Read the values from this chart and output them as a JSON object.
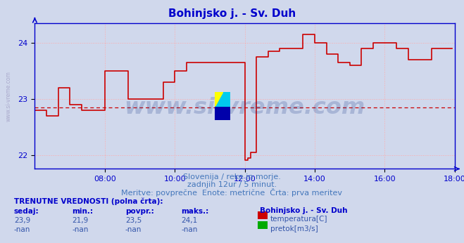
{
  "title": "Bohinjsko j. - Sv. Duh",
  "title_color": "#0000cc",
  "bg_color": "#d0d8ec",
  "plot_bg_color": "#d0d8ec",
  "grid_color": "#ffaaaa",
  "grid_linestyle": ":",
  "avg_line_color": "#cc0000",
  "avg_line_value": 22.84,
  "avg_line_style": "--",
  "xlim": [
    0,
    144
  ],
  "ylim": [
    21.75,
    24.35
  ],
  "yticks": [
    22,
    23,
    24
  ],
  "xtick_labels": [
    "08:00",
    "10:00",
    "12:00",
    "14:00",
    "16:00",
    "18:00"
  ],
  "xtick_positions": [
    24,
    48,
    72,
    96,
    120,
    144
  ],
  "watermark": "www.si-vreme.com",
  "watermark_color": "#1a3a8a",
  "watermark_alpha": 0.22,
  "subtitle1": "Slovenija / reke in morje.",
  "subtitle2": "zadnjih 12ur / 5 minut.",
  "subtitle3": "Meritve: povprečne  Enote: metrične  Črta: prva meritev",
  "subtitle_color": "#4477bb",
  "bottom_header": "TRENUTNE VREDNOSTI (polna črta):",
  "bottom_header_color": "#0000cc",
  "col_headers": [
    "sedaj:",
    "min.:",
    "povpr.:",
    "maks.:"
  ],
  "col_values_temp": [
    "23,9",
    "21,9",
    "23,5",
    "24,1"
  ],
  "col_values_pretok": [
    "-nan",
    "-nan",
    "-nan",
    "-nan"
  ],
  "col_header_color": "#0000cc",
  "col_value_color": "#3355aa",
  "station_label": "Bohinjsko j. - Sv. Duh",
  "legend_temp_color": "#cc0000",
  "legend_pretok_color": "#00aa00",
  "legend_temp_label": "temperatura[C]",
  "legend_pretok_label": "pretok[m3/s]",
  "line_color": "#cc0000",
  "line_width": 1.2,
  "axis_color": "#0000cc",
  "tick_color": "#0000cc",
  "left_label": "www.si-vreme.com",
  "left_label_color": "#aaaacc",
  "temperature_data": [
    22.8,
    22.8,
    22.8,
    22.8,
    22.7,
    22.7,
    22.7,
    22.7,
    23.2,
    23.2,
    23.2,
    23.2,
    22.9,
    22.9,
    22.9,
    22.9,
    22.8,
    22.8,
    22.8,
    22.8,
    22.8,
    22.8,
    22.8,
    22.8,
    23.5,
    23.5,
    23.5,
    23.5,
    23.5,
    23.5,
    23.5,
    23.5,
    23.0,
    23.0,
    23.0,
    23.0,
    23.0,
    23.0,
    23.0,
    23.0,
    23.0,
    23.0,
    23.0,
    23.0,
    23.3,
    23.3,
    23.3,
    23.3,
    23.5,
    23.5,
    23.5,
    23.5,
    23.65,
    23.65,
    23.65,
    23.65,
    23.65,
    23.65,
    23.65,
    23.65,
    23.65,
    23.65,
    23.65,
    23.65,
    23.65,
    23.65,
    23.65,
    23.65,
    23.65,
    23.65,
    23.65,
    23.65,
    21.9,
    21.95,
    22.05,
    22.05,
    23.75,
    23.75,
    23.75,
    23.75,
    23.85,
    23.85,
    23.85,
    23.85,
    23.9,
    23.9,
    23.9,
    23.9,
    23.9,
    23.9,
    23.9,
    23.9,
    24.15,
    24.15,
    24.15,
    24.15,
    24.0,
    24.0,
    24.0,
    24.0,
    23.8,
    23.8,
    23.8,
    23.8,
    23.65,
    23.65,
    23.65,
    23.65,
    23.6,
    23.6,
    23.6,
    23.6,
    23.9,
    23.9,
    23.9,
    23.9,
    24.0,
    24.0,
    24.0,
    24.0,
    24.0,
    24.0,
    24.0,
    24.0,
    23.9,
    23.9,
    23.9,
    23.9,
    23.7,
    23.7,
    23.7,
    23.7,
    23.7,
    23.7,
    23.7,
    23.7,
    23.9,
    23.9,
    23.9,
    23.9,
    23.9,
    23.9,
    23.9,
    23.9
  ]
}
